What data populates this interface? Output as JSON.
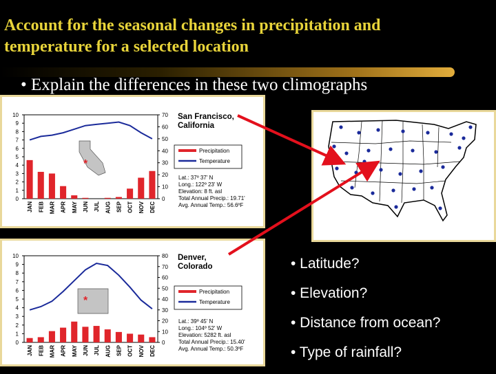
{
  "slide": {
    "title_line1": "Account for the seasonal changes in precipitation and",
    "title_line2": "temperature for a selected location",
    "bullet": "• Explain the differences in these two climographs"
  },
  "questions": [
    "• Latitude?",
    "• Elevation?",
    "• Distance from ocean?",
    "• Type of rainfall?"
  ],
  "colors": {
    "title": "#e8d43a",
    "precipitation": "#e0252b",
    "temperature": "#1a2a9a",
    "arrow": "#e3101c",
    "panel_border": "#e9d89a"
  },
  "legend": {
    "precipitation": "Precipitation",
    "temperature": "Temperature"
  },
  "chart_data": [
    {
      "type": "bar",
      "location": [
        "San Francisco,",
        "California"
      ],
      "categories": [
        "JAN",
        "FEB",
        "MAR",
        "APR",
        "MAY",
        "JUN",
        "JUL",
        "AUG",
        "SEP",
        "OCT",
        "NOV",
        "DEC"
      ],
      "series": [
        {
          "name": "Precipitation",
          "type": "bar",
          "axis": "left",
          "values": [
            4.6,
            3.2,
            3.0,
            1.5,
            0.4,
            0.1,
            0.0,
            0.1,
            0.2,
            1.2,
            2.5,
            3.3
          ]
        },
        {
          "name": "Temperature",
          "type": "line",
          "axis": "right",
          "values": [
            49,
            52,
            53,
            55,
            58,
            61,
            62,
            63,
            64,
            61,
            55,
            50
          ]
        }
      ],
      "y_left_ticks": [
        "0",
        "1",
        "2",
        "3",
        "4",
        "5",
        "6",
        "7",
        "8",
        "9",
        "10"
      ],
      "y_right_ticks": [
        "0",
        "10",
        "20",
        "30",
        "40",
        "50",
        "60",
        "70"
      ],
      "ylim_left": [
        0,
        10
      ],
      "ylim_right": [
        0,
        70
      ],
      "info": [
        "Lat.: 37º 37' N",
        "Long.: 122º 23' W",
        "Elevation: 8 ft. asl",
        "Total Annual Precip.: 19.71'",
        "Avg. Annual Temp.: 56.6ºF"
      ],
      "star": "*"
    },
    {
      "type": "bar",
      "location": [
        "Denver,",
        "Colorado"
      ],
      "categories": [
        "JAN",
        "FEB",
        "MAR",
        "APR",
        "MAY",
        "JUN",
        "JUL",
        "AUG",
        "SEP",
        "OCT",
        "NOV",
        "DEC"
      ],
      "series": [
        {
          "name": "Precipitation",
          "type": "bar",
          "axis": "left",
          "values": [
            0.5,
            0.6,
            1.3,
            1.7,
            2.4,
            1.8,
            1.9,
            1.5,
            1.2,
            1.0,
            0.9,
            0.6
          ]
        },
        {
          "name": "Temperature",
          "type": "line",
          "axis": "right",
          "values": [
            30,
            33,
            38,
            47,
            57,
            67,
            73,
            71,
            62,
            51,
            39,
            31
          ]
        }
      ],
      "y_left_ticks": [
        "0",
        "1",
        "2",
        "3",
        "4",
        "5",
        "6",
        "7",
        "8",
        "9",
        "10"
      ],
      "y_right_ticks": [
        "0",
        "10",
        "20",
        "30",
        "40",
        "50",
        "60",
        "70",
        "80"
      ],
      "ylim_left": [
        0,
        10
      ],
      "ylim_right": [
        0,
        80
      ],
      "info": [
        "Lat.: 39º 45' N",
        "Long.: 104º 52' W",
        "Elevation: 5282 ft. asl",
        "Total Annual Precip.: 15.40'",
        "Avg. Annual Temp.: 50.3ºF"
      ],
      "star": "*"
    }
  ]
}
